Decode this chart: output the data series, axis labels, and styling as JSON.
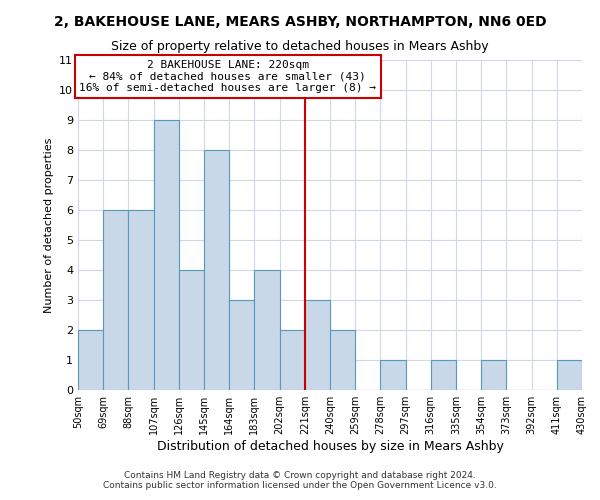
{
  "title": "2, BAKEHOUSE LANE, MEARS ASHBY, NORTHAMPTON, NN6 0ED",
  "subtitle": "Size of property relative to detached houses in Mears Ashby",
  "xlabel": "Distribution of detached houses by size in Mears Ashby",
  "ylabel": "Number of detached properties",
  "bin_labels": [
    "50sqm",
    "69sqm",
    "88sqm",
    "107sqm",
    "126sqm",
    "145sqm",
    "164sqm",
    "183sqm",
    "202sqm",
    "221sqm",
    "240sqm",
    "259sqm",
    "278sqm",
    "297sqm",
    "316sqm",
    "335sqm",
    "354sqm",
    "373sqm",
    "392sqm",
    "411sqm",
    "430sqm"
  ],
  "bin_edges": [
    50,
    69,
    88,
    107,
    126,
    145,
    164,
    183,
    202,
    221,
    240,
    259,
    278,
    297,
    316,
    335,
    354,
    373,
    392,
    411,
    430
  ],
  "counts": [
    2,
    6,
    6,
    9,
    4,
    8,
    3,
    4,
    2,
    3,
    2,
    0,
    1,
    0,
    1,
    0,
    1,
    0,
    0,
    1
  ],
  "bar_color": "#c8d8e8",
  "bar_edge_color": "#5599bb",
  "ref_line_x": 221,
  "ref_line_color": "#cc0000",
  "annotation_title": "2 BAKEHOUSE LANE: 220sqm",
  "annotation_line1": "← 84% of detached houses are smaller (43)",
  "annotation_line2": "16% of semi-detached houses are larger (8) →",
  "annotation_box_color": "#ffffff",
  "annotation_box_edge_color": "#cc0000",
  "ylim": [
    0,
    11
  ],
  "yticks": [
    0,
    1,
    2,
    3,
    4,
    5,
    6,
    7,
    8,
    9,
    10,
    11
  ],
  "footer_line1": "Contains HM Land Registry data © Crown copyright and database right 2024.",
  "footer_line2": "Contains public sector information licensed under the Open Government Licence v3.0.",
  "background_color": "#ffffff",
  "grid_color": "#d0d8e8"
}
